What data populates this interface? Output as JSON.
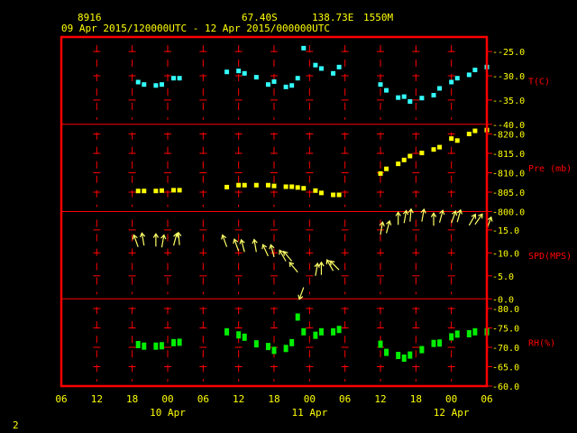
{
  "header": {
    "station_id": "8916",
    "lat": "67.40S",
    "lon": "138.73E",
    "elevation": "1550M",
    "period": "09 Apr 2015/120000UTC - 12 Apr 2015/000000UTC"
  },
  "footer": {
    "page_number": "2"
  },
  "colors": {
    "background": "#000000",
    "frame": "#ff0000",
    "text": "#ffff00",
    "grid": "#ff0000",
    "temperature": "#33ffff",
    "pressure": "#ffff00",
    "wind": "#ffff66",
    "humidity": "#00ee00",
    "panel_label": "#ff0000"
  },
  "x_axis": {
    "tick_labels": [
      "06",
      "12",
      "18",
      "00",
      "06",
      "12",
      "18",
      "00",
      "06",
      "12",
      "18",
      "00",
      "06"
    ],
    "tick_hours": [
      0,
      6,
      12,
      18,
      24,
      30,
      36,
      42,
      48,
      54,
      60,
      66,
      72
    ],
    "date_labels": [
      {
        "text": "10 Apr",
        "hour": 18
      },
      {
        "text": "11 Apr",
        "hour": 42
      },
      {
        "text": "12 Apr",
        "hour": 66
      }
    ]
  },
  "chart_data": {
    "type": "scatter",
    "x_unit": "hours since 09 Apr 06 UTC",
    "xlim": [
      0,
      72
    ],
    "grid": true,
    "panels": [
      {
        "id": "temp",
        "label": "T(C)",
        "marker": "square",
        "color": "#33ffff",
        "ylim": [
          -40,
          -22
        ],
        "ticks": [
          -40.0,
          -35.0,
          -30.0,
          -25.0
        ],
        "tick_labels": [
          "-40.0",
          "-35.0",
          "-30.0",
          "-25.0"
        ],
        "points": [
          [
            13,
            -31.3
          ],
          [
            14,
            -31.8
          ],
          [
            16,
            -32.0
          ],
          [
            17,
            -31.8
          ],
          [
            19,
            -30.5
          ],
          [
            20,
            -30.5
          ],
          [
            28,
            -29.2
          ],
          [
            30,
            -29.0
          ],
          [
            31,
            -29.5
          ],
          [
            33,
            -30.3
          ],
          [
            35,
            -31.8
          ],
          [
            36,
            -31.2
          ],
          [
            38,
            -32.3
          ],
          [
            39,
            -32.0
          ],
          [
            40,
            -30.5
          ],
          [
            41,
            -24.3
          ],
          [
            43,
            -27.8
          ],
          [
            44,
            -28.5
          ],
          [
            46,
            -29.5
          ],
          [
            47,
            -28.2
          ],
          [
            54,
            -31.8
          ],
          [
            55,
            -33.0
          ],
          [
            57,
            -34.5
          ],
          [
            58,
            -34.3
          ],
          [
            59,
            -35.3
          ],
          [
            61,
            -34.6
          ],
          [
            63,
            -34.0
          ],
          [
            64,
            -32.6
          ],
          [
            66,
            -31.3
          ],
          [
            67,
            -30.5
          ],
          [
            69,
            -29.8
          ],
          [
            70,
            -28.8
          ],
          [
            72,
            -28.2
          ]
        ]
      },
      {
        "id": "pres",
        "label": "Pre (mb)",
        "marker": "square",
        "color": "#ffff00",
        "ylim": [
          800,
          822.5
        ],
        "ticks": [
          800.0,
          805.0,
          810.0,
          815.0,
          820.0
        ],
        "tick_labels": [
          "800.0",
          "805.0",
          "810.0",
          "815.0",
          "820.0"
        ],
        "points": [
          [
            13,
            805.3
          ],
          [
            14,
            805.3
          ],
          [
            16,
            805.3
          ],
          [
            17,
            805.4
          ],
          [
            19,
            805.5
          ],
          [
            20,
            805.5
          ],
          [
            28,
            806.3
          ],
          [
            30,
            806.8
          ],
          [
            31,
            806.8
          ],
          [
            33,
            806.8
          ],
          [
            35,
            806.8
          ],
          [
            36,
            806.6
          ],
          [
            38,
            806.4
          ],
          [
            39,
            806.4
          ],
          [
            40,
            806.2
          ],
          [
            41,
            806.0
          ],
          [
            43,
            805.4
          ],
          [
            44,
            804.8
          ],
          [
            46,
            804.3
          ],
          [
            47,
            804.3
          ],
          [
            54,
            809.8
          ],
          [
            55,
            811.0
          ],
          [
            57,
            812.3
          ],
          [
            58,
            813.3
          ],
          [
            59,
            814.3
          ],
          [
            61,
            815.1
          ],
          [
            63,
            816.0
          ],
          [
            64,
            816.6
          ],
          [
            66,
            818.8
          ],
          [
            67,
            818.3
          ],
          [
            69,
            820.0
          ],
          [
            70,
            820.8
          ],
          [
            72,
            821.0
          ]
        ]
      },
      {
        "id": "wind",
        "label": "SPD(MPS)",
        "marker": "arrow",
        "color": "#ffff66",
        "ylim": [
          0,
          19
        ],
        "ticks": [
          0.0,
          5.0,
          10.0,
          15.0
        ],
        "tick_labels": [
          "0.0",
          "5.0",
          "10.0",
          "15.0"
        ],
        "points": [
          [
            13,
            11.3,
            -20
          ],
          [
            14,
            11.6,
            -10
          ],
          [
            16,
            11.4,
            0
          ],
          [
            17,
            11.2,
            10
          ],
          [
            19,
            11.6,
            15
          ],
          [
            20,
            11.7,
            -5
          ],
          [
            28,
            11.3,
            -20
          ],
          [
            30,
            10.4,
            -20
          ],
          [
            31,
            10.2,
            -15
          ],
          [
            33,
            10.2,
            -10
          ],
          [
            35,
            9.3,
            -25
          ],
          [
            36,
            9.1,
            -15
          ],
          [
            38,
            8.2,
            -30
          ],
          [
            39,
            8.2,
            -40
          ],
          [
            40,
            5.8,
            -40
          ],
          [
            41,
            2.5,
            -160
          ],
          [
            43,
            5.0,
            10
          ],
          [
            44,
            5.2,
            0
          ],
          [
            46,
            6.1,
            -30
          ],
          [
            47,
            6.3,
            -45
          ],
          [
            54,
            14.0,
            10
          ],
          [
            55,
            14.3,
            15
          ],
          [
            57,
            16.1,
            0
          ],
          [
            58,
            16.5,
            10
          ],
          [
            59,
            16.8,
            5
          ],
          [
            61,
            16.8,
            10
          ],
          [
            63,
            15.9,
            0
          ],
          [
            64,
            16.6,
            15
          ],
          [
            66,
            16.5,
            20
          ],
          [
            67,
            16.7,
            15
          ],
          [
            69,
            16.0,
            30
          ],
          [
            70,
            16.2,
            35
          ],
          [
            72,
            15.2,
            20
          ]
        ]
      },
      {
        "id": "rh",
        "label": "RH(%)",
        "marker": "rect",
        "color": "#00ee00",
        "ylim": [
          60,
          82.5
        ],
        "ticks": [
          60.0,
          65.0,
          70.0,
          75.0,
          80.0
        ],
        "tick_labels": [
          "60.0",
          "65.0",
          "70.0",
          "75.0",
          "80.0"
        ],
        "points": [
          [
            13,
            70.7
          ],
          [
            14,
            70.3
          ],
          [
            16,
            70.3
          ],
          [
            17,
            70.4
          ],
          [
            19,
            71.2
          ],
          [
            20,
            71.3
          ],
          [
            28,
            74.0
          ],
          [
            30,
            73.2
          ],
          [
            31,
            72.6
          ],
          [
            33,
            70.9
          ],
          [
            35,
            70.2
          ],
          [
            36,
            69.2
          ],
          [
            38,
            69.7
          ],
          [
            39,
            71.2
          ],
          [
            40,
            77.8
          ],
          [
            41,
            74.0
          ],
          [
            43,
            73.1
          ],
          [
            44,
            74.0
          ],
          [
            46,
            74.0
          ],
          [
            47,
            74.6
          ],
          [
            54,
            70.8
          ],
          [
            55,
            68.7
          ],
          [
            57,
            67.9
          ],
          [
            58,
            67.2
          ],
          [
            59,
            68.0
          ],
          [
            61,
            69.4
          ],
          [
            63,
            71.0
          ],
          [
            64,
            71.1
          ],
          [
            66,
            72.7
          ],
          [
            67,
            73.4
          ],
          [
            69,
            73.5
          ],
          [
            70,
            74.0
          ],
          [
            72,
            74.0
          ]
        ]
      }
    ]
  }
}
